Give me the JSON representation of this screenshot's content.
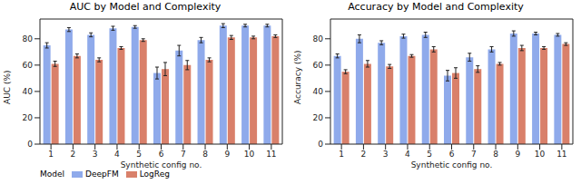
{
  "chart_data": [
    {
      "type": "bar",
      "title": "AUC by Model and Complexity",
      "x_label": "Synthetic config no.",
      "y_label": "AUC (%)",
      "categories": [
        "1",
        "2",
        "3",
        "4",
        "5",
        "6",
        "7",
        "8",
        "9",
        "10",
        "11"
      ],
      "ylim": [
        0,
        95
      ],
      "yticks": [
        0,
        20,
        40,
        60,
        80
      ],
      "legend": "bottom",
      "legend_title": "Model",
      "series": [
        {
          "name": "DeepFM",
          "color": "#8faaeb",
          "values": [
            75,
            87,
            83,
            88,
            89,
            54,
            71,
            79,
            90,
            90,
            90
          ],
          "errors": [
            2,
            1.5,
            1.5,
            1.5,
            1,
            4.5,
            4,
            2,
            1.5,
            1,
            1
          ]
        },
        {
          "name": "LogReg",
          "color": "#d9806a",
          "values": [
            61,
            67,
            64,
            73,
            79,
            57,
            60,
            64,
            81,
            81,
            82
          ],
          "errors": [
            2,
            1.5,
            1.5,
            1,
            1,
            5,
            3.5,
            1.5,
            1.5,
            1,
            1
          ]
        }
      ]
    },
    {
      "type": "bar",
      "title": "Accuracy by Model and Complexity",
      "x_label": "Synthetic config no.",
      "y_label": "Accuracy (%)",
      "categories": [
        "1",
        "2",
        "3",
        "4",
        "5",
        "6",
        "7",
        "8",
        "9",
        "10",
        "11"
      ],
      "ylim": [
        0,
        95
      ],
      "yticks": [
        0,
        20,
        40,
        60,
        80
      ],
      "series": [
        {
          "name": "DeepFM",
          "color": "#8faaeb",
          "values": [
            67,
            80,
            77,
            82,
            83,
            52,
            66,
            72,
            84,
            84,
            83
          ],
          "errors": [
            1.5,
            3,
            1.5,
            1.5,
            2,
            4,
            3,
            2,
            2,
            1,
            1
          ]
        },
        {
          "name": "LogReg",
          "color": "#d9806a",
          "values": [
            55,
            61,
            59,
            67,
            72,
            54,
            57,
            61,
            73,
            73,
            76
          ],
          "errors": [
            1.5,
            2.5,
            1.5,
            1,
            2,
            4,
            2.5,
            1,
            2,
            1,
            1
          ]
        }
      ]
    }
  ]
}
